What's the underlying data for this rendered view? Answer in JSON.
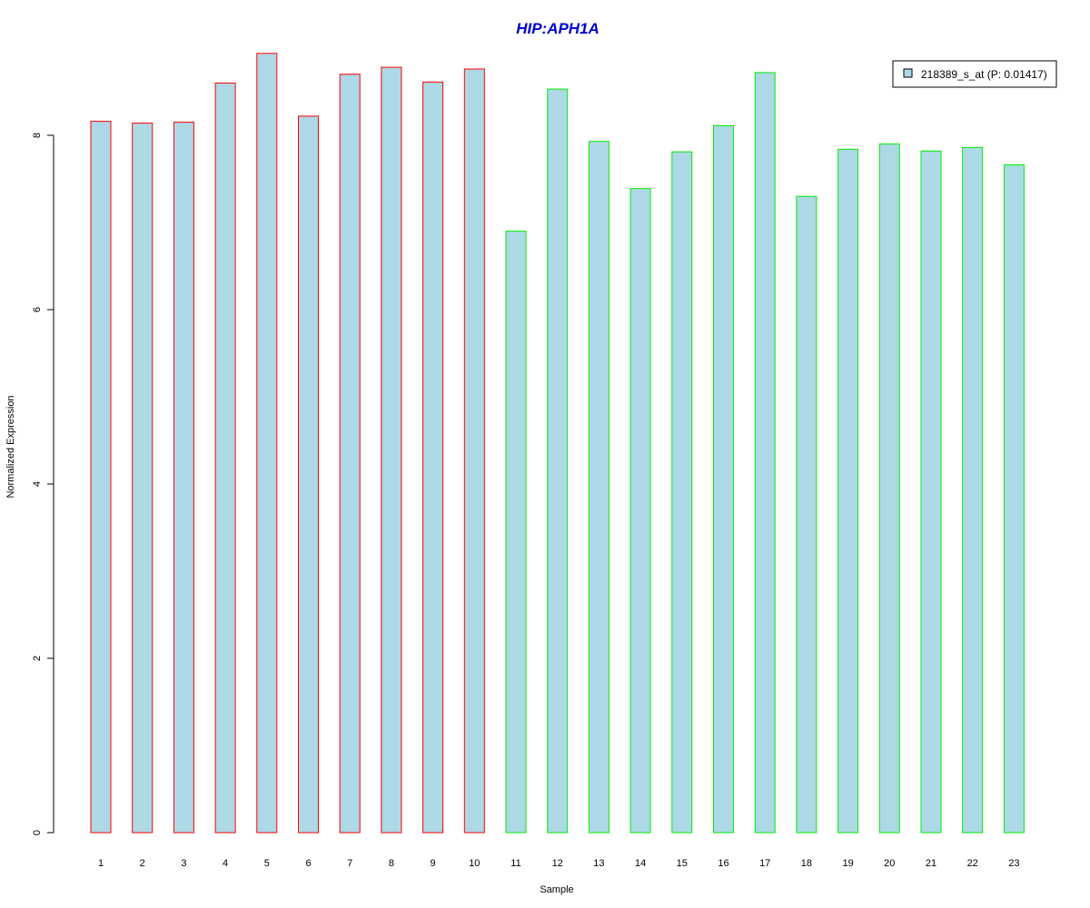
{
  "chart_data": {
    "type": "bar",
    "title": "HIP:APH1A",
    "xlabel": "Sample",
    "ylabel": "Normalized Expression",
    "categories": [
      "1",
      "2",
      "3",
      "4",
      "5",
      "6",
      "7",
      "8",
      "9",
      "10",
      "11",
      "12",
      "13",
      "14",
      "15",
      "16",
      "17",
      "18",
      "19",
      "20",
      "21",
      "22",
      "23"
    ],
    "series": [
      {
        "name": "218389_s_at (P: 0.01417)",
        "values": [
          8.16,
          8.14,
          8.15,
          8.6,
          8.94,
          8.22,
          8.7,
          8.78,
          8.61,
          8.76,
          6.9,
          8.53,
          7.93,
          7.39,
          7.81,
          8.11,
          8.72,
          7.3,
          7.84,
          7.9,
          7.82,
          7.86,
          7.66
        ]
      }
    ],
    "groups": [
      "A",
      "A",
      "A",
      "A",
      "A",
      "A",
      "A",
      "A",
      "A",
      "A",
      "B",
      "B",
      "B",
      "B",
      "B",
      "B",
      "B",
      "B",
      "B",
      "B",
      "B",
      "B",
      "B"
    ],
    "group_colors": {
      "A": "#ff0000",
      "B": "#00ee00"
    },
    "bar_fill": "#add8e6",
    "ylim": [
      0,
      9
    ],
    "yticks": [
      "0",
      "2",
      "4",
      "6",
      "8"
    ],
    "legend_position": "top-right",
    "grid": false,
    "title_color": "#0000cc"
  }
}
